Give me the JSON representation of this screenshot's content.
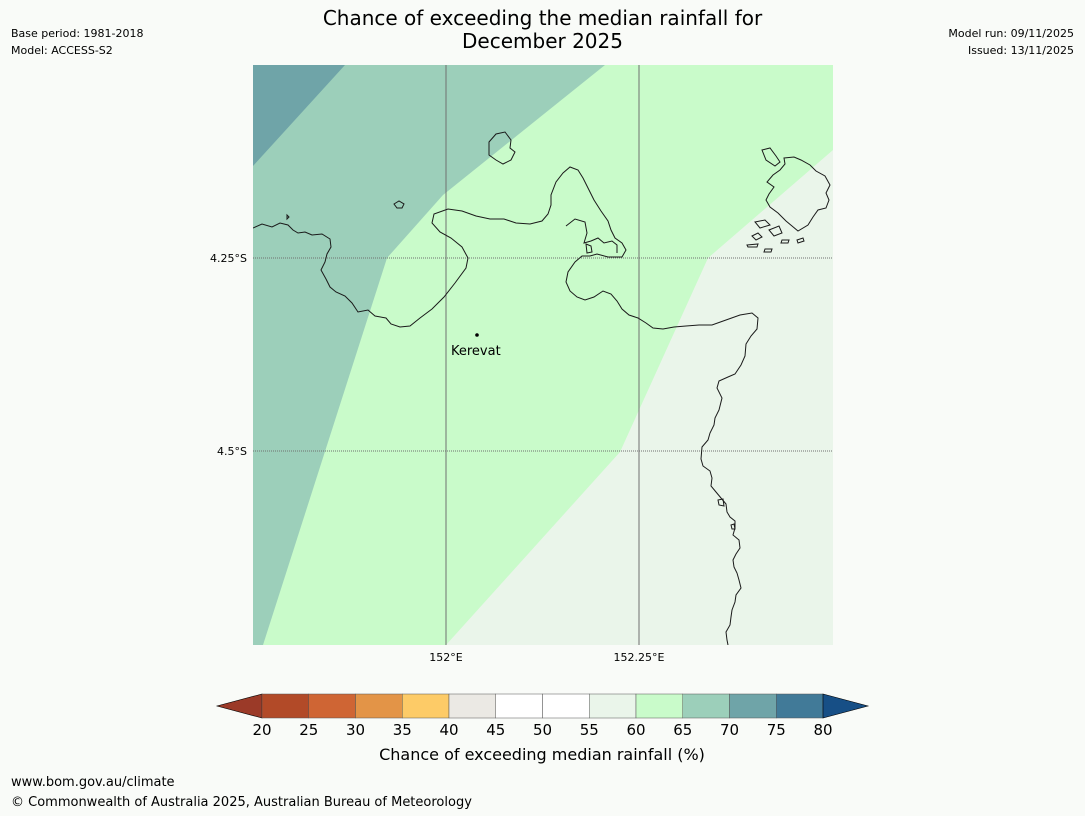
{
  "header": {
    "title_line1": "Chance of exceeding the median rainfall for",
    "title_line2": "December 2025",
    "base_period": "Base period: 1981-2018",
    "model": "Model: ACCESS-S2",
    "model_run": "Model run: 09/11/2025",
    "issued": "Issued: 13/11/2025"
  },
  "map": {
    "lat_labels": [
      "4.25°S",
      "4.5°S"
    ],
    "lon_labels": [
      "152°E",
      "152.25°E"
    ],
    "places": [
      {
        "name": "Kerevat"
      }
    ],
    "region_colors": {
      "band_70_75": "#6fa4a8",
      "band_65_70": "#9ccfba",
      "band_60_65": "#c9fbca",
      "band_55_60": "#eaf5ea"
    },
    "coastline_color": "#1a1a1a",
    "gridline_color": "#707070"
  },
  "colorbar": {
    "label": "Chance of exceeding median rainfall (%)",
    "ticks": [
      "20",
      "25",
      "30",
      "35",
      "40",
      "45",
      "50",
      "55",
      "60",
      "65",
      "70",
      "75",
      "80"
    ],
    "under_color": "#9b3a28",
    "over_color": "#174f86",
    "band_colors": [
      "#b24a28",
      "#cf6534",
      "#e39447",
      "#fdcb67",
      "#ebe9e4",
      "#ffffff",
      "#ffffff",
      "#eaf5ea",
      "#c9fbca",
      "#9ccfba",
      "#6fa4a8",
      "#417a98"
    ]
  },
  "footer": {
    "url": "www.bom.gov.au/climate",
    "copyright": "© Commonwealth of Australia 2025, Australian Bureau of Meteorology"
  }
}
